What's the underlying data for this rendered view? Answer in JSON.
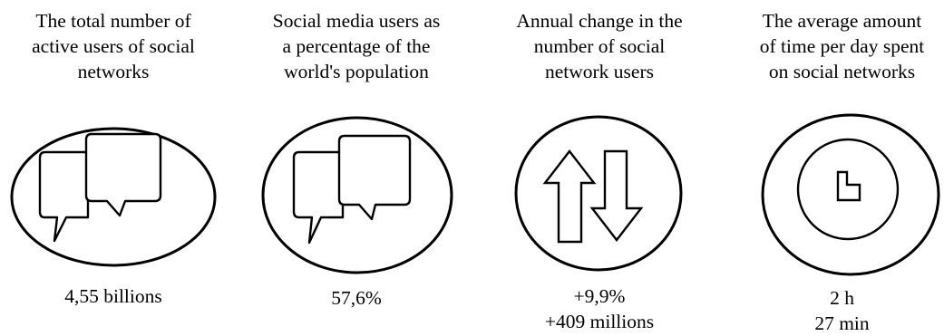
{
  "stats": [
    {
      "title": "The total number of\nactive users of social\nnetworks",
      "icon": "speech-bubbles-icon",
      "value": "4,55 billions"
    },
    {
      "title": "Social media users as\na percentage of the\nworld's population",
      "icon": "speech-bubbles-icon",
      "value": "57,6%"
    },
    {
      "title": "Annual change in the\nnumber of social\nnetwork users",
      "icon": "up-down-arrows-icon",
      "value": "+9,9%\n+409 millions"
    },
    {
      "title": "The average amount\nof time per day spent\non social networks",
      "icon": "clock-icon",
      "value": "2 h\n27 min"
    }
  ]
}
